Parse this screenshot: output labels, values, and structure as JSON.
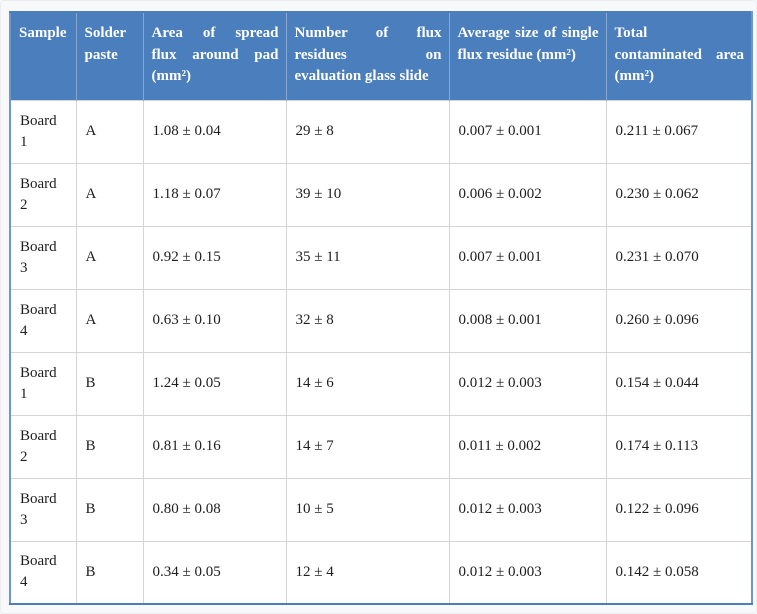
{
  "colors": {
    "header_bg": "#4a7ebc",
    "header_text": "#ffffff",
    "header_divider": "#87a7d3",
    "outer_border": "#6f96cc",
    "grid_line": "#d5d5d5",
    "body_text": "#1e1e1e",
    "page_bg": "#f8f9fa"
  },
  "table": {
    "columns": [
      {
        "label": "Sample",
        "lines": [
          "Sample"
        ]
      },
      {
        "label": "Solder paste",
        "lines": [
          "Solder",
          "paste"
        ]
      },
      {
        "label": "Area of spread flux around pad (mm²)",
        "lines": [
          "Area of spread",
          "flux around pad",
          "(mm²)"
        ]
      },
      {
        "label": "Number of flux residues on evaluation glass slide",
        "lines": [
          "Number of flux",
          "residues on",
          "evaluation glass slide"
        ]
      },
      {
        "label": "Average size of single flux residue (mm²)",
        "lines": [
          "Average size of single",
          "flux residue (mm²)"
        ]
      },
      {
        "label": "Total contaminated area (mm²)",
        "lines": [
          "Total",
          "contaminated area",
          "(mm²)"
        ]
      }
    ],
    "rows": [
      {
        "sample": "Board 1",
        "paste": "A",
        "area": "1.08 ± 0.04",
        "residues": "29 ± 8",
        "avg_size": "0.007 ± 0.001",
        "total_area": "0.211 ± 0.067"
      },
      {
        "sample": "Board 2",
        "paste": "A",
        "area": "1.18 ± 0.07",
        "residues": "39 ± 10",
        "avg_size": "0.006 ± 0.002",
        "total_area": "0.230 ± 0.062"
      },
      {
        "sample": "Board 3",
        "paste": "A",
        "area": "0.92 ± 0.15",
        "residues": "35 ± 11",
        "avg_size": "0.007 ± 0.001",
        "total_area": "0.231 ± 0.070"
      },
      {
        "sample": "Board 4",
        "paste": "A",
        "area": "0.63 ± 0.10",
        "residues": "32 ± 8",
        "avg_size": "0.008 ± 0.001",
        "total_area": "0.260 ± 0.096"
      },
      {
        "sample": "Board 1",
        "paste": "B",
        "area": "1.24 ± 0.05",
        "residues": "14 ± 6",
        "avg_size": "0.012 ± 0.003",
        "total_area": "0.154 ± 0.044"
      },
      {
        "sample": "Board 2",
        "paste": "B",
        "area": "0.81 ± 0.16",
        "residues": "14 ± 7",
        "avg_size": "0.011 ± 0.002",
        "total_area": "0.174 ± 0.113"
      },
      {
        "sample": "Board 3",
        "paste": "B",
        "area": "0.80 ± 0.08",
        "residues": "10 ± 5",
        "avg_size": "0.012 ± 0.003",
        "total_area": "0.122 ± 0.096"
      },
      {
        "sample": "Board 4",
        "paste": "B",
        "area": "0.34 ± 0.05",
        "residues": "12 ± 4",
        "avg_size": "0.012 ± 0.003",
        "total_area": "0.142 ± 0.058"
      }
    ]
  }
}
